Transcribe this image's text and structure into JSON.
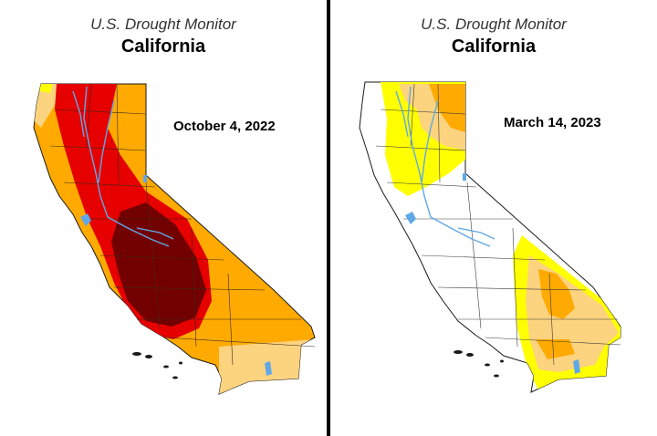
{
  "maps": [
    {
      "subtitle": "U.S. Drought Monitor",
      "title": "California",
      "date": "October 4, 2022"
    },
    {
      "subtitle": "U.S. Drought Monitor",
      "title": "California",
      "date": "March 14, 2023"
    }
  ],
  "colors": {
    "none": "#ffffff",
    "D0": "#ffff00",
    "D1": "#fcd37f",
    "D2": "#ffaa00",
    "D3": "#e60000",
    "D4": "#730000",
    "water": "#5fa8e8",
    "border": "#1a1a1a"
  }
}
